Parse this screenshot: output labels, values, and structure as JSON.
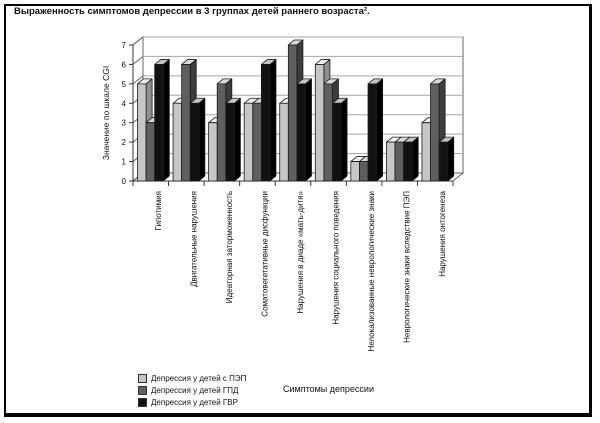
{
  "title": "Выраженность симптомов депрессии в 3 группах детей раннего возраста².",
  "chart_data": {
    "type": "bar",
    "subtype": "3d-clustered",
    "title": "Выраженность симптомов депрессии в 3 группах детей раннего возраста².",
    "xlabel": "Симптомы депрессии",
    "ylabel": "Значение по шкале CGI",
    "ylim": [
      0,
      7
    ],
    "yticks": [
      0,
      1,
      2,
      3,
      4,
      5,
      6,
      7
    ],
    "grid": true,
    "legend_position": "bottom-left",
    "categories": [
      "Гипотимия",
      "Двигательные нарушения",
      "Идеаторная заторможенность",
      "Соматовегетативные дисфункции",
      "Нарушения в диаде «мать-дитя»",
      "Нарушения социального поведения",
      "Нелокализованные неврологические знаки",
      "Неврологические знаки вследствие ПЭП",
      "Нарушения онтогенеза"
    ],
    "series": [
      {
        "name": "Депрессия у детей с ПЭП",
        "color": "#c6c6c6",
        "color_top": "#f2f2f2",
        "color_side": "#8f8f8f",
        "values": [
          5,
          4,
          3,
          4,
          4,
          6,
          1,
          2,
          3
        ]
      },
      {
        "name": "Депрессия у детей ГПД",
        "color": "#5f5f5f",
        "color_top": "#d9d9d9",
        "color_side": "#3d3d3d",
        "values": [
          3,
          6,
          5,
          4,
          7,
          5,
          1,
          2,
          5
        ]
      },
      {
        "name": "Депрессия у детей ГВР",
        "color": "#111111",
        "color_top": "#c4c4c4",
        "color_side": "#000000",
        "values": [
          6,
          4,
          4,
          6,
          5,
          4,
          5,
          2,
          2
        ]
      }
    ],
    "colors": {
      "gridline": "#a6a6a6",
      "wall_edge": "#666666",
      "axis": "#333333",
      "bar_outline": "#1a1a1a"
    }
  }
}
